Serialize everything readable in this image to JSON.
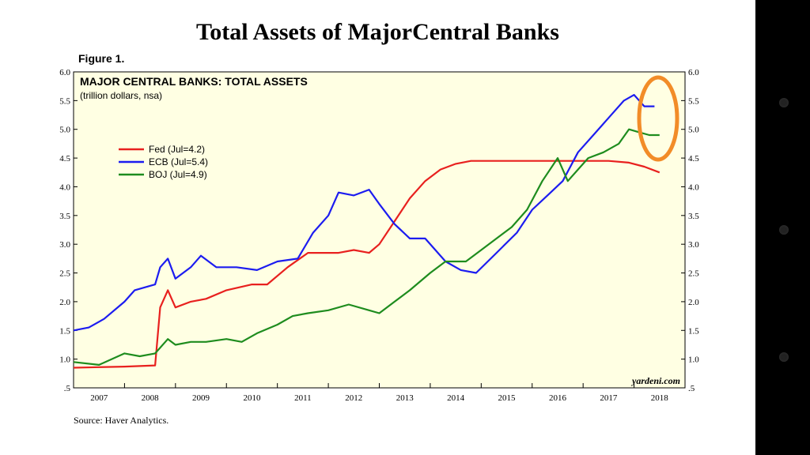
{
  "slide": {
    "title": "Total Assets of MajorCentral Banks",
    "figure_label": "Figure 1.",
    "source": "Source: Haver Analytics."
  },
  "colors": {
    "plot_background": "#ffffe3",
    "fed": "#e8201e",
    "ecb": "#1c1cf0",
    "boj": "#1e8c1e",
    "highlight_circle": "#f28c28"
  },
  "chart_data": {
    "type": "line",
    "title": "MAJOR CENTRAL BANKS: TOTAL ASSETS",
    "subtitle": "(trillion dollars, nsa)",
    "credit": "yardeni.com",
    "ylim": [
      0.5,
      6.0
    ],
    "yticks": [
      "6.0",
      "5.5",
      "5.0",
      "4.5",
      "4.0",
      "3.5",
      "3.0",
      "2.5",
      "2.0",
      "1.5",
      "1.0",
      ".5"
    ],
    "xlim": [
      2007,
      2019
    ],
    "xtick_labels": [
      "2007",
      "2008",
      "2009",
      "2010",
      "2011",
      "2012",
      "2013",
      "2014",
      "2015",
      "2016",
      "2017",
      "2018"
    ],
    "grid": false,
    "legend_position": "upper-left",
    "series": [
      {
        "name": "Fed (Jul=4.2)",
        "color": "#e8201e",
        "x": [
          2007.0,
          2007.5,
          2008.0,
          2008.6,
          2008.7,
          2008.85,
          2009.0,
          2009.3,
          2009.6,
          2010.0,
          2010.5,
          2010.8,
          2011.2,
          2011.6,
          2011.8,
          2012.2,
          2012.5,
          2012.8,
          2013.0,
          2013.3,
          2013.6,
          2013.9,
          2014.2,
          2014.5,
          2014.8,
          2015.2,
          2015.6,
          2016.0,
          2016.5,
          2017.0,
          2017.5,
          2017.9,
          2018.2,
          2018.5
        ],
        "values": [
          0.85,
          0.86,
          0.87,
          0.89,
          1.9,
          2.2,
          1.9,
          2.0,
          2.05,
          2.2,
          2.3,
          2.3,
          2.6,
          2.85,
          2.85,
          2.85,
          2.9,
          2.85,
          3.0,
          3.4,
          3.8,
          4.1,
          4.3,
          4.4,
          4.45,
          4.45,
          4.45,
          4.45,
          4.45,
          4.45,
          4.45,
          4.42,
          4.35,
          4.25
        ]
      },
      {
        "name": "ECB (Jul=5.4)",
        "color": "#1c1cf0",
        "x": [
          2007.0,
          2007.3,
          2007.6,
          2008.0,
          2008.2,
          2008.6,
          2008.7,
          2008.85,
          2009.0,
          2009.3,
          2009.5,
          2009.8,
          2010.2,
          2010.6,
          2011.0,
          2011.4,
          2011.7,
          2012.0,
          2012.2,
          2012.5,
          2012.8,
          2013.0,
          2013.3,
          2013.6,
          2013.9,
          2014.3,
          2014.6,
          2014.9,
          2015.3,
          2015.7,
          2016.0,
          2016.3,
          2016.6,
          2016.9,
          2017.2,
          2017.5,
          2017.8,
          2018.0,
          2018.2,
          2018.4
        ],
        "values": [
          1.5,
          1.55,
          1.7,
          2.0,
          2.2,
          2.3,
          2.6,
          2.75,
          2.4,
          2.6,
          2.8,
          2.6,
          2.6,
          2.55,
          2.7,
          2.75,
          3.2,
          3.5,
          3.9,
          3.85,
          3.95,
          3.7,
          3.35,
          3.1,
          3.1,
          2.7,
          2.55,
          2.5,
          2.85,
          3.2,
          3.6,
          3.85,
          4.1,
          4.6,
          4.9,
          5.2,
          5.5,
          5.6,
          5.4,
          5.4
        ]
      },
      {
        "name": "BOJ (Jul=4.9)",
        "color": "#1e8c1e",
        "x": [
          2007.0,
          2007.5,
          2008.0,
          2008.3,
          2008.6,
          2008.85,
          2009.0,
          2009.3,
          2009.6,
          2010.0,
          2010.3,
          2010.6,
          2011.0,
          2011.3,
          2011.6,
          2012.0,
          2012.4,
          2012.8,
          2013.0,
          2013.3,
          2013.6,
          2014.0,
          2014.3,
          2014.7,
          2015.0,
          2015.3,
          2015.6,
          2015.9,
          2016.2,
          2016.5,
          2016.7,
          2016.9,
          2017.1,
          2017.4,
          2017.7,
          2017.9,
          2018.1,
          2018.3,
          2018.5
        ],
        "values": [
          0.95,
          0.9,
          1.1,
          1.05,
          1.1,
          1.35,
          1.25,
          1.3,
          1.3,
          1.35,
          1.3,
          1.45,
          1.6,
          1.75,
          1.8,
          1.85,
          1.95,
          1.85,
          1.8,
          2.0,
          2.2,
          2.5,
          2.7,
          2.7,
          2.9,
          3.1,
          3.3,
          3.6,
          4.1,
          4.5,
          4.1,
          4.3,
          4.5,
          4.6,
          4.75,
          5.0,
          4.95,
          4.9,
          4.9
        ]
      }
    ]
  }
}
